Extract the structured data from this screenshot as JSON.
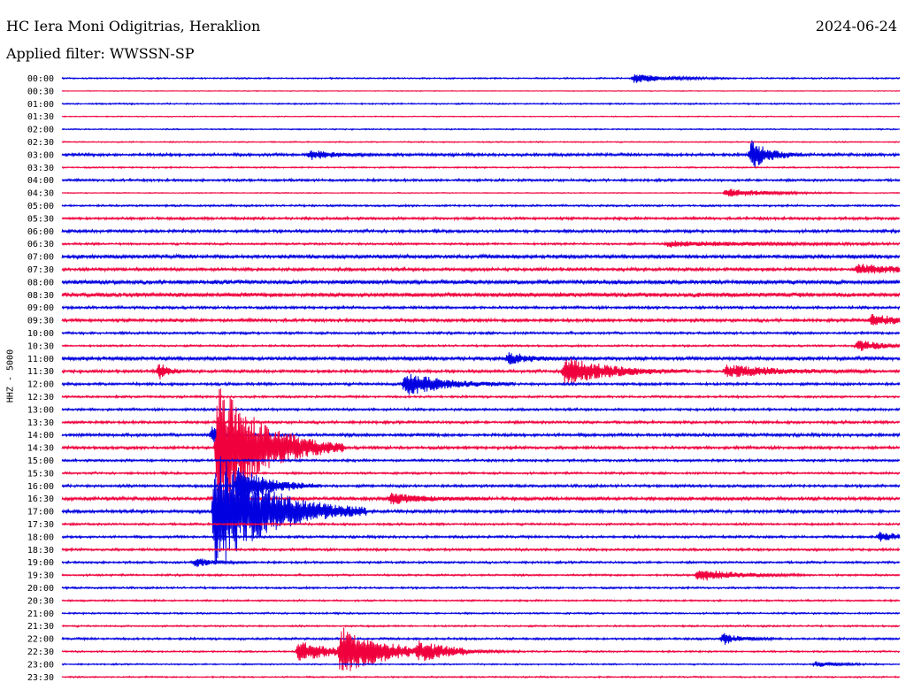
{
  "header": {
    "station": "HC Iera Moni Odigitrias, Heraklion",
    "date": "2024-06-24",
    "filter": "Applied filter: WWSSN-SP"
  },
  "chart_data": {
    "type": "line",
    "title": "HC Iera Moni Odigitrias, Heraklion",
    "ylabel": "HHZ - 5000",
    "rows": [
      "00:00",
      "00:30",
      "01:00",
      "01:30",
      "02:00",
      "02:30",
      "03:00",
      "03:30",
      "04:00",
      "04:30",
      "05:00",
      "05:30",
      "06:00",
      "06:30",
      "07:00",
      "07:30",
      "08:00",
      "08:30",
      "09:00",
      "09:30",
      "10:00",
      "10:30",
      "11:00",
      "11:30",
      "12:00",
      "12:30",
      "13:00",
      "13:30",
      "14:00",
      "14:30",
      "15:00",
      "15:30",
      "16:00",
      "16:30",
      "17:00",
      "17:30",
      "18:00",
      "18:30",
      "19:00",
      "19:30",
      "20:00",
      "20:30",
      "21:00",
      "21:30",
      "22:00",
      "22:30",
      "23:00",
      "23:30"
    ],
    "colors": {
      "even_rows": "#0000e0",
      "odd_rows": "#f0003c"
    },
    "row_duration_minutes": 30,
    "noise_level": [
      0.6,
      0.3,
      0.6,
      0.4,
      0.5,
      0.5,
      1.2,
      0.6,
      1.0,
      0.4,
      0.8,
      1.1,
      1.2,
      0.9,
      1.6,
      1.3,
      1.8,
      1.9,
      1.1,
      1.3,
      1.0,
      0.8,
      1.6,
      1.2,
      1.1,
      0.9,
      1.0,
      1.1,
      1.3,
      1.2,
      1.0,
      0.9,
      1.1,
      1.4,
      1.3,
      0.9,
      1.0,
      1.0,
      0.9,
      0.8,
      0.8,
      0.7,
      0.7,
      0.7,
      0.9,
      0.7,
      0.6,
      0.6
    ],
    "events": [
      {
        "row": 0,
        "minute": 20.5,
        "amplitude": 5,
        "duration_min": 1.2
      },
      {
        "row": 6,
        "minute": 24.7,
        "amplitude": 17,
        "duration_min": 0.6
      },
      {
        "row": 6,
        "minute": 8.9,
        "amplitude": 5,
        "duration_min": 0.8
      },
      {
        "row": 9,
        "minute": 23.8,
        "amplitude": 5,
        "duration_min": 1.5
      },
      {
        "row": 13,
        "minute": 21.7,
        "amplitude": 3,
        "duration_min": 3.0
      },
      {
        "row": 15,
        "minute": 28.5,
        "amplitude": 5,
        "duration_min": 1.8
      },
      {
        "row": 19,
        "minute": 29.0,
        "amplitude": 6,
        "duration_min": 1.2
      },
      {
        "row": 21,
        "minute": 28.5,
        "amplitude": 7,
        "duration_min": 0.8
      },
      {
        "row": 22,
        "minute": 16.0,
        "amplitude": 6,
        "duration_min": 0.7
      },
      {
        "row": 23,
        "minute": 18.0,
        "amplitude": 16,
        "duration_min": 1.5
      },
      {
        "row": 23,
        "minute": 23.8,
        "amplitude": 7,
        "duration_min": 1.8
      },
      {
        "row": 23,
        "minute": 3.5,
        "amplitude": 10,
        "duration_min": 0.3
      },
      {
        "row": 24,
        "minute": 12.3,
        "amplitude": 14,
        "duration_min": 1.3
      },
      {
        "row": 28,
        "minute": 5.4,
        "amplitude": 9,
        "duration_min": 0.3
      },
      {
        "row": 29,
        "minute": 5.6,
        "amplitude": 80,
        "duration_min": 1.5
      },
      {
        "row": 32,
        "minute": 6.3,
        "amplitude": 24,
        "duration_min": 1.0
      },
      {
        "row": 33,
        "minute": 11.8,
        "amplitude": 6,
        "duration_min": 1.2
      },
      {
        "row": 34,
        "minute": 5.5,
        "amplitude": 70,
        "duration_min": 1.8
      },
      {
        "row": 36,
        "minute": 29.3,
        "amplitude": 5,
        "duration_min": 0.8
      },
      {
        "row": 38,
        "minute": 4.8,
        "amplitude": 5,
        "duration_min": 0.6
      },
      {
        "row": 39,
        "minute": 22.8,
        "amplitude": 7,
        "duration_min": 1.3
      },
      {
        "row": 44,
        "minute": 23.7,
        "amplitude": 6,
        "duration_min": 0.6
      },
      {
        "row": 45,
        "minute": 8.5,
        "amplitude": 11,
        "duration_min": 1.3
      },
      {
        "row": 45,
        "minute": 10.0,
        "amplitude": 26,
        "duration_min": 1.5
      },
      {
        "row": 45,
        "minute": 12.8,
        "amplitude": 8,
        "duration_min": 1.2
      },
      {
        "row": 46,
        "minute": 27.0,
        "amplitude": 3,
        "duration_min": 0.8
      }
    ]
  }
}
